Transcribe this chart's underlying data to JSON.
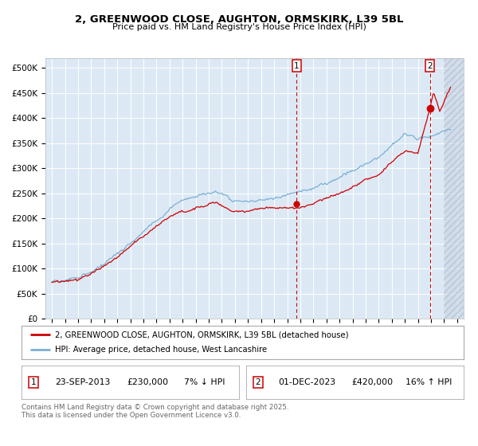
{
  "title": "2, GREENWOOD CLOSE, AUGHTON, ORMSKIRK, L39 5BL",
  "subtitle": "Price paid vs. HM Land Registry's House Price Index (HPI)",
  "sale1_date": "23-SEP-2013",
  "sale1_price": 230000,
  "sale1_note": "7% ↓ HPI",
  "sale2_date": "01-DEC-2023",
  "sale2_price": 420000,
  "sale2_note": "16% ↑ HPI",
  "legend_line1": "2, GREENWOOD CLOSE, AUGHTON, ORMSKIRK, L39 5BL (detached house)",
  "legend_line2": "HPI: Average price, detached house, West Lancashire",
  "footer": "Contains HM Land Registry data © Crown copyright and database right 2025.\nThis data is licensed under the Open Government Licence v3.0.",
  "red_color": "#cc0000",
  "blue_color": "#7ab0d4",
  "bg_color": "#dce9f5",
  "grid_color": "#ffffff",
  "vline_color": "#cc0000",
  "ylim": [
    0,
    520000
  ],
  "yticks": [
    0,
    50000,
    100000,
    150000,
    200000,
    250000,
    300000,
    350000,
    400000,
    450000,
    500000
  ],
  "sale1_x": 2013.73,
  "sale2_x": 2023.92,
  "xmin": 1994.5,
  "xmax": 2026.5,
  "hatch_start": 2025.0
}
